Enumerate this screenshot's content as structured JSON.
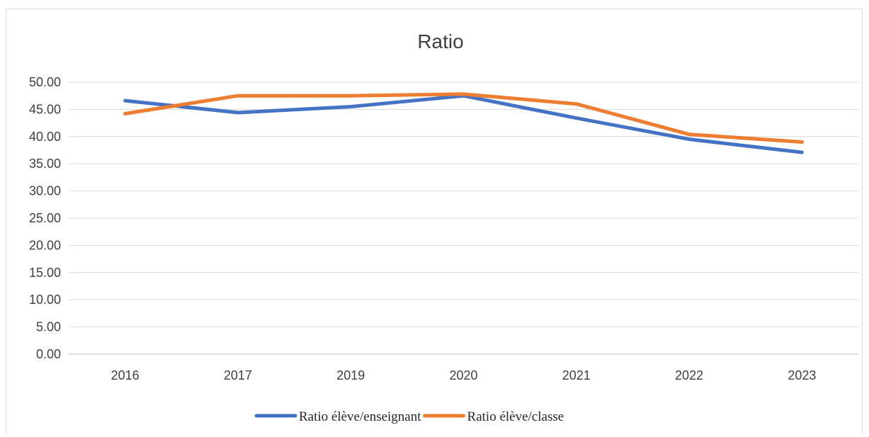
{
  "chart_data": {
    "type": "line",
    "title": "Ratio",
    "xlabel": "",
    "ylabel": "",
    "categories": [
      "2016",
      "2017",
      "2019",
      "2020",
      "2021",
      "2022",
      "2023"
    ],
    "ylim": [
      0,
      50
    ],
    "y_ticks": [
      "0.00",
      "5.00",
      "10.00",
      "15.00",
      "20.00",
      "25.00",
      "30.00",
      "35.00",
      "40.00",
      "45.00",
      "50.00"
    ],
    "grid": true,
    "legend_position": "bottom",
    "series": [
      {
        "name": "Ratio élève/enseignant",
        "color": "#4472c4",
        "values": [
          46.6,
          44.4,
          45.5,
          47.5,
          43.4,
          39.5,
          37.1
        ]
      },
      {
        "name": "Ratio élève/classe",
        "color": "#ed7d31",
        "values": [
          44.2,
          47.5,
          47.5,
          47.8,
          46.0,
          40.4,
          39.0
        ]
      }
    ]
  }
}
